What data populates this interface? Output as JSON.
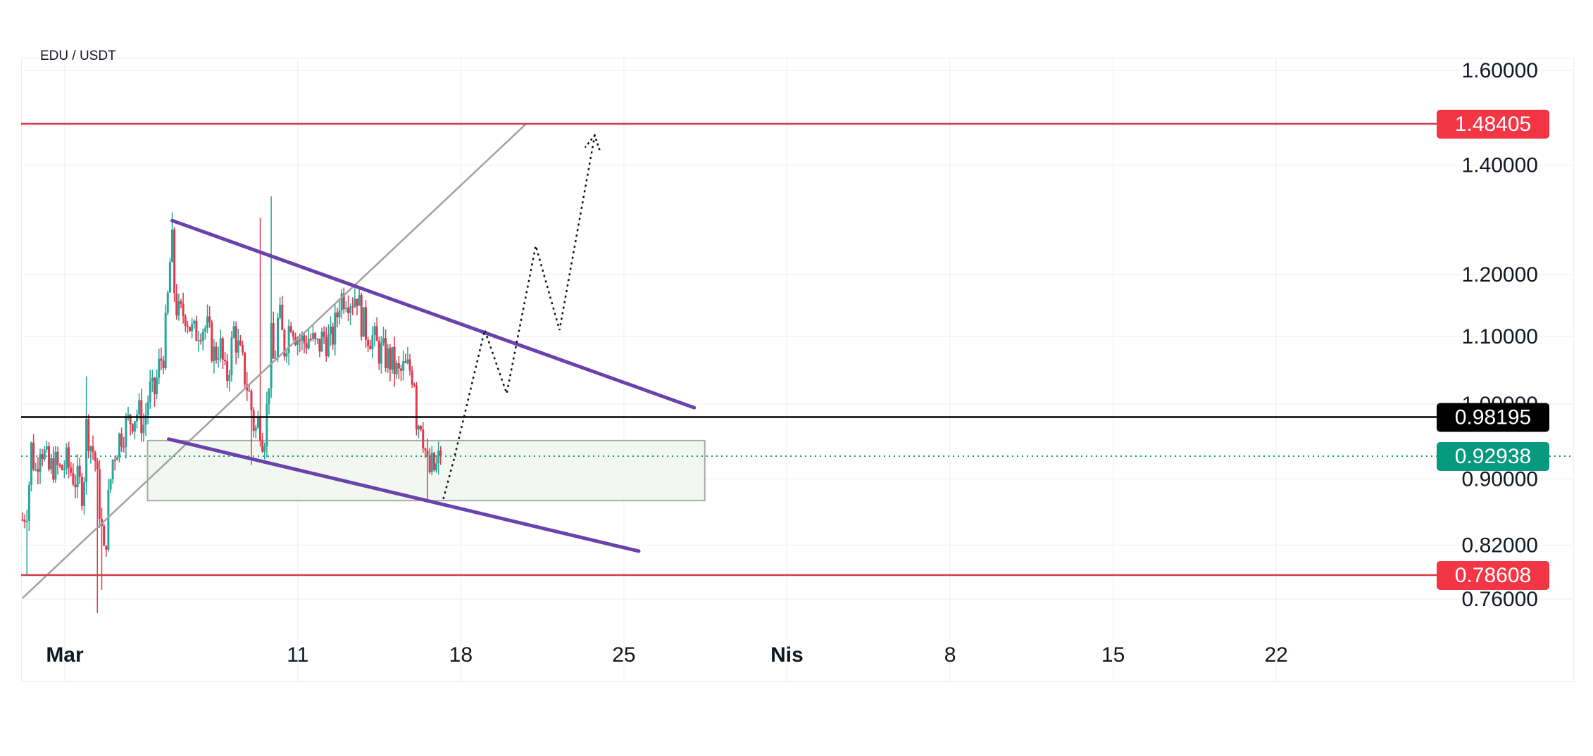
{
  "title": "EDU / USDT",
  "colors": {
    "up": "#26a69a",
    "down": "#e0384f",
    "resistance_line": "#d63848",
    "wedge": "#6a42ab",
    "trend_line": "#a2a2a2",
    "current_price": "#109c82",
    "key_level": "#000000",
    "zone_fill": "#eef6ec",
    "zone_border": "#a9a9a9",
    "grid": "#eeeeee"
  },
  "y_axis": {
    "scale": "log",
    "range": [
      0.715,
      1.66
    ],
    "ticks": [
      "1.60000",
      "1.40000",
      "1.20000",
      "1.10000",
      "1.00000",
      "0.90000",
      "0.82000",
      "0.76000"
    ]
  },
  "x_axis": {
    "ticks": [
      {
        "label": "Mar",
        "day": 1,
        "bold": true
      },
      {
        "label": "11",
        "day": 11
      },
      {
        "label": "18",
        "day": 18
      },
      {
        "label": "25",
        "day": 25
      },
      {
        "label": "Nis",
        "day": 32,
        "bold": true
      },
      {
        "label": "8",
        "day": 39
      },
      {
        "label": "15",
        "day": 46
      },
      {
        "label": "22",
        "day": 53
      }
    ]
  },
  "price_badges": [
    {
      "label": "1.48405",
      "value": 1.48405,
      "style": "resistance"
    },
    {
      "label": "0.98195",
      "value": 0.98195,
      "style": "key"
    },
    {
      "label": "0.92938",
      "value": 0.92938,
      "style": "current"
    },
    {
      "label": "0.78608",
      "value": 0.78608,
      "style": "resistance"
    }
  ],
  "chart_data": {
    "type": "candlestick",
    "title": "EDU / USDT",
    "x_unit": "day (1 = Mar 1, 32 = Apr 1)",
    "anchors": [
      [
        0.0,
        0.85
      ],
      [
        0.6,
        0.87
      ],
      [
        1.0,
        0.94
      ],
      [
        1.5,
        0.91
      ],
      [
        2.0,
        0.95
      ],
      [
        3.0,
        0.91
      ],
      [
        3.6,
        0.92
      ],
      [
        4.2,
        0.91
      ],
      [
        5.0,
        0.92
      ],
      [
        6.0,
        0.9
      ],
      [
        6.9,
        0.885
      ],
      [
        7.3,
        0.98
      ],
      [
        7.6,
        0.95
      ],
      [
        8.2,
        0.93
      ],
      [
        8.8,
        0.86
      ],
      [
        9.3,
        0.8
      ],
      [
        9.8,
        0.88
      ],
      [
        10.3,
        0.93
      ],
      [
        11.2,
        0.96
      ],
      [
        12.3,
        0.98
      ],
      [
        13.1,
        0.99
      ],
      [
        13.8,
        0.97
      ],
      [
        14.4,
        1.02
      ],
      [
        14.9,
        1.01
      ],
      [
        15.6,
        1.06
      ],
      [
        16.1,
        1.08
      ],
      [
        16.7,
        1.2
      ],
      [
        16.9,
        1.28
      ],
      [
        17.3,
        1.16
      ],
      [
        17.8,
        1.13
      ],
      [
        18.5,
        1.14
      ],
      [
        19.4,
        1.1
      ],
      [
        20.2,
        1.12
      ],
      [
        21.0,
        1.11
      ],
      [
        21.8,
        1.07
      ],
      [
        22.4,
        1.09
      ],
      [
        23.1,
        1.03
      ],
      [
        23.6,
        1.07
      ],
      [
        24.0,
        1.11
      ],
      [
        24.5,
        1.08
      ],
      [
        25.1,
        1.05
      ],
      [
        25.8,
        1.01
      ],
      [
        26.4,
        0.96
      ],
      [
        26.9,
        0.98
      ],
      [
        27.4,
        0.95
      ],
      [
        27.9,
        1.01
      ],
      [
        28.2,
        1.1
      ],
      [
        28.6,
        1.05
      ],
      [
        29.1,
        1.14
      ],
      [
        29.7,
        1.08
      ],
      [
        30.5,
        1.13
      ],
      [
        31.2,
        1.1
      ],
      [
        31.9,
        1.09
      ],
      [
        32.6,
        1.1
      ],
      [
        33.4,
        1.08
      ],
      [
        34.2,
        1.1
      ],
      [
        35.0,
        1.09
      ],
      [
        35.6,
        1.12
      ],
      [
        36.0,
        1.16
      ],
      [
        36.7,
        1.17
      ],
      [
        37.4,
        1.16
      ],
      [
        38.0,
        1.17
      ],
      [
        38.4,
        1.13
      ],
      [
        39.0,
        1.11
      ],
      [
        39.7,
        1.1
      ],
      [
        40.4,
        1.08
      ],
      [
        41.2,
        1.07
      ],
      [
        42.0,
        1.06
      ],
      [
        42.7,
        1.04
      ],
      [
        43.3,
        1.05
      ],
      [
        44.1,
        1.05
      ],
      [
        44.5,
        1.04
      ],
      [
        44.8,
        0.97
      ],
      [
        45.2,
        0.985
      ],
      [
        45.6,
        0.95
      ],
      [
        46.1,
        0.905
      ],
      [
        46.5,
        0.915
      ],
      [
        46.9,
        0.91
      ],
      [
        47.3,
        0.925
      ],
      [
        47.6,
        0.929
      ]
    ],
    "spikes": [
      {
        "i": 0.5,
        "low": 0.785
      },
      {
        "i": 7.2,
        "high": 1.04
      },
      {
        "i": 8.5,
        "low": 0.745
      },
      {
        "i": 9.1,
        "low": 0.77
      },
      {
        "i": 16.9,
        "high": 1.31
      },
      {
        "i": 25.9,
        "low": 0.918
      },
      {
        "i": 27.0,
        "high": 1.3
      },
      {
        "i": 27.4,
        "low": 0.925
      },
      {
        "i": 28.3,
        "high": 1.34
      },
      {
        "i": 46.1,
        "low": 0.87
      }
    ],
    "lines": {
      "resistance_top": 1.48405,
      "key_level": 0.98195,
      "current_price": 0.92938,
      "support_bottom": 0.78608,
      "wedge_upper": [
        [
          17,
          1.295
        ],
        [
          76.3,
          0.995
        ]
      ],
      "wedge_lower": [
        [
          16.6,
          0.952
        ],
        [
          70,
          0.813
        ]
      ],
      "trend_line": [
        [
          0,
          0.761
        ],
        [
          57.2,
          1.484
        ]
      ],
      "zone": {
        "x": [
          14.2,
          77.5
        ],
        "y": [
          0.873,
          0.95
        ]
      },
      "projection": [
        [
          47.8,
          0.875
        ],
        [
          49,
          0.925
        ],
        [
          52.5,
          1.11
        ],
        [
          55,
          1.015
        ],
        [
          58.3,
          1.25
        ],
        [
          61,
          1.11
        ],
        [
          65,
          1.46
        ]
      ]
    }
  }
}
